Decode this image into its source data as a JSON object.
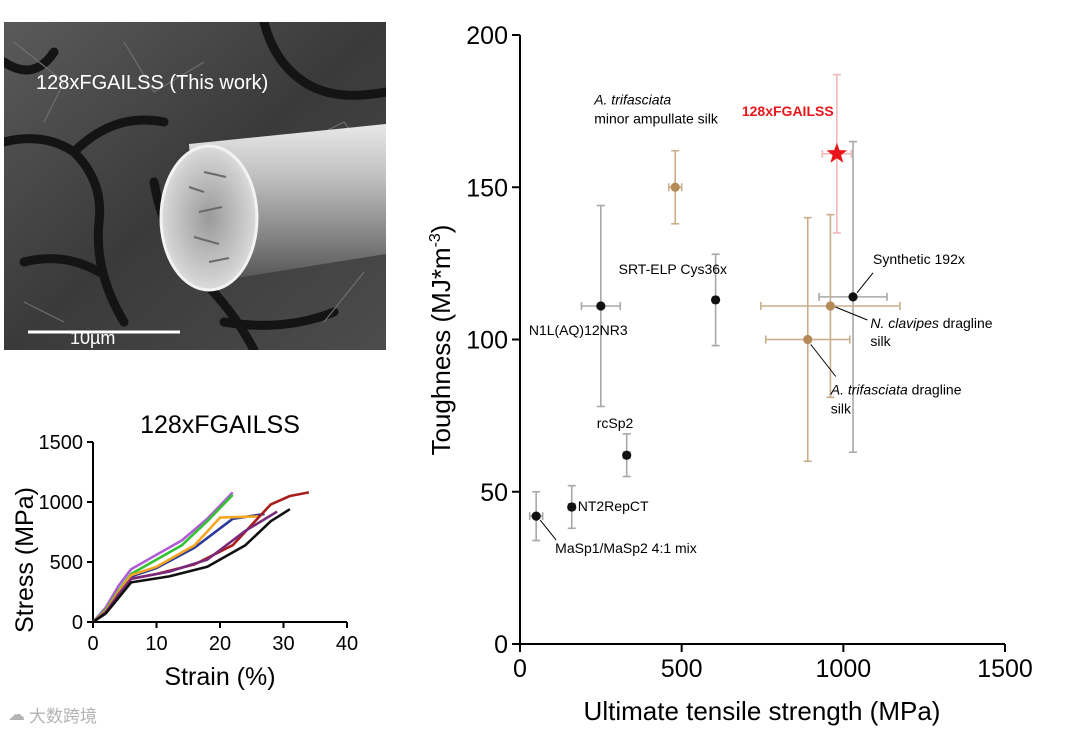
{
  "sem_image": {
    "caption": "128xFGAILSS (This work)",
    "scale_label": "10µm"
  },
  "stress_strain": {
    "title": "128xFGAILSS",
    "xlabel": "Strain (%)",
    "ylabel": "Stress (MPa)",
    "xlim": [
      0,
      40
    ],
    "ylim": [
      0,
      1500
    ],
    "xticks": [
      0,
      10,
      20,
      30,
      40
    ],
    "yticks": [
      0,
      500,
      1000,
      1500
    ],
    "curves": [
      {
        "color": "#b05cd6",
        "points": [
          [
            0,
            0
          ],
          [
            2,
            120
          ],
          [
            4,
            300
          ],
          [
            6,
            440
          ],
          [
            10,
            560
          ],
          [
            14,
            680
          ],
          [
            18,
            860
          ],
          [
            22,
            1080
          ]
        ]
      },
      {
        "color": "#33c233",
        "points": [
          [
            0,
            0
          ],
          [
            2,
            100
          ],
          [
            4,
            260
          ],
          [
            6,
            400
          ],
          [
            10,
            520
          ],
          [
            14,
            640
          ],
          [
            18,
            840
          ],
          [
            22,
            1060
          ]
        ]
      },
      {
        "color": "#2a3a9c",
        "points": [
          [
            0,
            0
          ],
          [
            2,
            80
          ],
          [
            4,
            240
          ],
          [
            6,
            380
          ],
          [
            10,
            450
          ],
          [
            16,
            620
          ],
          [
            22,
            860
          ],
          [
            27,
            900
          ]
        ]
      },
      {
        "color": "#f5a623",
        "points": [
          [
            0,
            0
          ],
          [
            2,
            90
          ],
          [
            4,
            250
          ],
          [
            6,
            390
          ],
          [
            10,
            460
          ],
          [
            16,
            640
          ],
          [
            20,
            870
          ],
          [
            26,
            880
          ]
        ]
      },
      {
        "color": "#a81e1e",
        "points": [
          [
            0,
            0
          ],
          [
            2,
            80
          ],
          [
            4,
            220
          ],
          [
            6,
            360
          ],
          [
            10,
            400
          ],
          [
            16,
            480
          ],
          [
            22,
            640
          ],
          [
            28,
            980
          ],
          [
            31,
            1050
          ],
          [
            34,
            1080
          ]
        ]
      },
      {
        "color": "#7a2a7a",
        "points": [
          [
            0,
            0
          ],
          [
            2,
            80
          ],
          [
            4,
            230
          ],
          [
            6,
            360
          ],
          [
            12,
            420
          ],
          [
            18,
            520
          ],
          [
            24,
            760
          ],
          [
            29,
            920
          ]
        ]
      },
      {
        "color": "#111111",
        "points": [
          [
            0,
            0
          ],
          [
            2,
            70
          ],
          [
            4,
            200
          ],
          [
            6,
            330
          ],
          [
            12,
            380
          ],
          [
            18,
            460
          ],
          [
            24,
            640
          ],
          [
            28,
            840
          ],
          [
            31,
            940
          ]
        ]
      }
    ]
  },
  "chart_data": {
    "type": "scatter",
    "xlabel": "Ultimate tensile strength (MPa)",
    "ylabel": "Toughness (MJ*m-3)",
    "ylabel_base": "Toughness (MJ*m",
    "ylabel_sup": "-3",
    "ylabel_tail": ")",
    "xlim": [
      0,
      1500
    ],
    "ylim": [
      0,
      200
    ],
    "xticks": [
      0,
      500,
      1000,
      1500
    ],
    "yticks": [
      0,
      50,
      100,
      150,
      200
    ],
    "colors": {
      "synthetic": "#111111",
      "natural": "#b58a56",
      "this_work": "#e8161b"
    },
    "points": [
      {
        "id": "this-work",
        "x": 980,
        "y": 161,
        "xerr": 45,
        "yerr": 26,
        "kind": "this_work",
        "marker": "star",
        "label": "128xFGAILSS",
        "label_style": "red-bold",
        "label_anchor": "above-left"
      },
      {
        "id": "a-trifasciata-minor",
        "x": 480,
        "y": 150,
        "xerr": 20,
        "yerr": 12,
        "kind": "natural",
        "marker": "circle",
        "label_italic": "A. trifasciata",
        "label_rest": "minor ampullate silk",
        "label_anchor": "above-left-2line"
      },
      {
        "id": "srt-elp",
        "x": 605,
        "y": 113,
        "xerr": 8,
        "yerr": 15,
        "kind": "synthetic",
        "marker": "circle",
        "label": "SRT-ELP Cys36x",
        "label_anchor": "above-left"
      },
      {
        "id": "n1l",
        "x": 250,
        "y": 111,
        "xerr": 60,
        "yerr": 33,
        "kind": "synthetic",
        "marker": "circle",
        "label": "N1L(AQ)12NR3",
        "label_anchor": "below"
      },
      {
        "id": "synthetic-192x",
        "x": 1030,
        "y": 114,
        "xerr": 105,
        "yerr": 51,
        "kind": "synthetic",
        "marker": "circle",
        "label": "Synthetic 192x",
        "label_anchor": "leader-up-right"
      },
      {
        "id": "n-clavipes",
        "x": 960,
        "y": 111,
        "xerr": 215,
        "yerr": 30,
        "kind": "natural",
        "marker": "circle",
        "label_italic": "N. clavipes",
        "label_rest": "dragline",
        "label_line2": "silk",
        "label_anchor": "leader-right"
      },
      {
        "id": "a-trifasciata-dragline",
        "x": 890,
        "y": 100,
        "xerr": 130,
        "yerr": 40,
        "kind": "natural",
        "marker": "circle",
        "label_italic": "A. trifasciata",
        "label_rest": "dragline",
        "label_line2": "silk",
        "label_anchor": "leader-down"
      },
      {
        "id": "rcsp2",
        "x": 330,
        "y": 62,
        "xerr": 10,
        "yerr": 7,
        "kind": "synthetic",
        "marker": "circle",
        "label": "rcSp2",
        "label_anchor": "above"
      },
      {
        "id": "nt2repct",
        "x": 160,
        "y": 45,
        "xerr": 10,
        "yerr": 7,
        "kind": "synthetic",
        "marker": "circle",
        "label": "NT2RepCT",
        "label_anchor": "right"
      },
      {
        "id": "masp-mix",
        "x": 50,
        "y": 42,
        "xerr": 20,
        "yerr": 8,
        "kind": "synthetic",
        "marker": "circle",
        "label": "MaSp1/MaSp2 4:1 mix",
        "label_anchor": "leader-down-right"
      }
    ]
  },
  "watermark": {
    "text": "大数跨境"
  }
}
